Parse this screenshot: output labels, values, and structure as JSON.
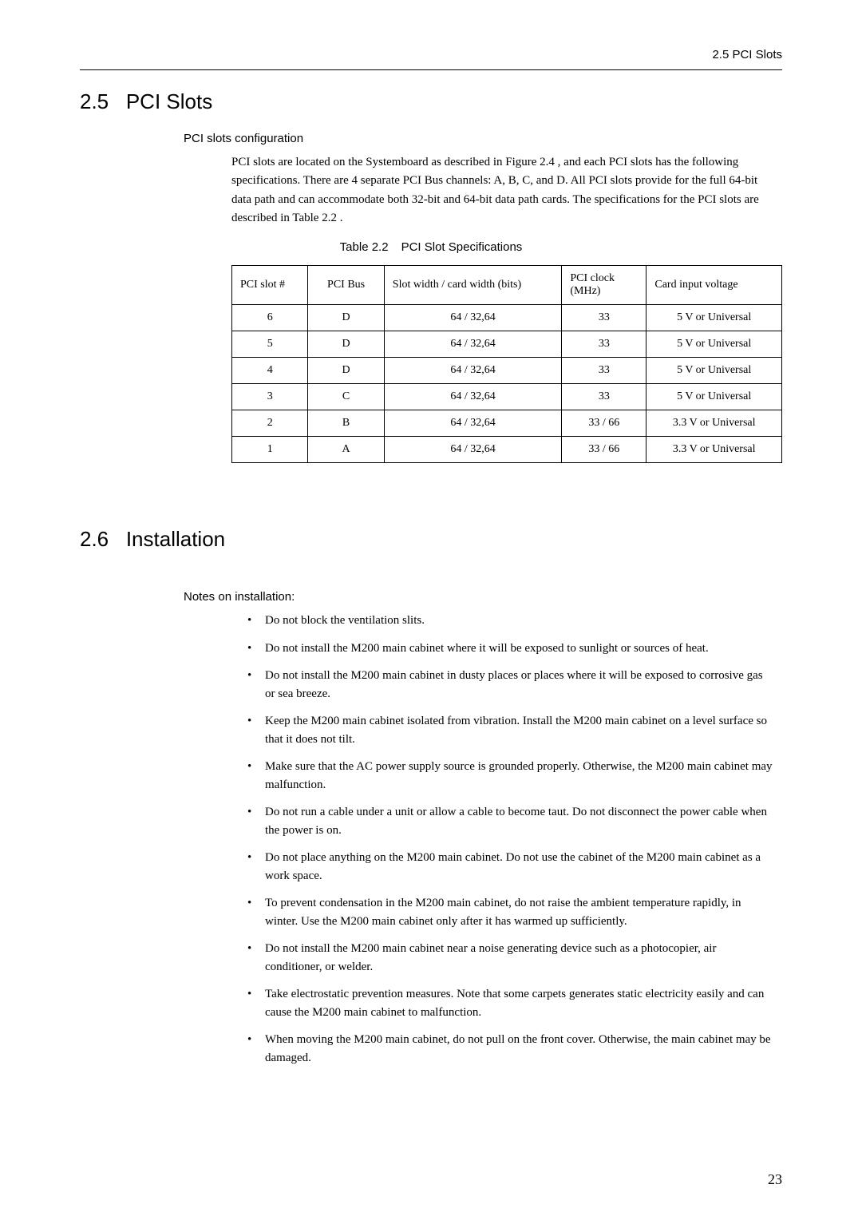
{
  "header_right": "2.5  PCI Slots",
  "section1": {
    "number": "2.5",
    "title": "PCI Slots",
    "subtitle": "PCI slots configuration",
    "para": "PCI slots are located on the Systemboard as described in Figure 2.4 , and each PCI slots has the following specifications. There are 4 separate PCI Bus channels: A, B, C, and D. All PCI slots provide for the full 64-bit data path and can accommodate both 32-bit and 64-bit data path cards. The specifications for the PCI slots are described in Table 2.2 .",
    "table_caption_num": "Table 2.2",
    "table_caption_text": "PCI Slot Specifications",
    "columns": [
      "PCI slot #",
      "PCI Bus",
      "Slot width / card width (bits)",
      "PCI clock (MHz)",
      "Card input voltage"
    ],
    "rows": [
      [
        "6",
        "D",
        "64 / 32,64",
        "33",
        "5 V or Universal"
      ],
      [
        "5",
        "D",
        "64 / 32,64",
        "33",
        "5 V or Universal"
      ],
      [
        "4",
        "D",
        "64 / 32,64",
        "33",
        "5 V or Universal"
      ],
      [
        "3",
        "C",
        "64 / 32,64",
        "33",
        "5 V or Universal"
      ],
      [
        "2",
        "B",
        "64 / 32,64",
        "33 / 66",
        "3.3 V or Universal"
      ],
      [
        "1",
        "A",
        "64 / 32,64",
        "33 / 66",
        "3.3 V or Universal"
      ]
    ]
  },
  "section2": {
    "number": "2.6",
    "title": "Installation",
    "subtitle": "Notes on installation:",
    "items": [
      "Do not block the ventilation slits.",
      "Do not install the M200 main cabinet where it will be exposed to sunlight or sources of heat.",
      "Do not install the M200 main cabinet in dusty places or places where it will be exposed to corrosive gas or sea breeze.",
      "Keep the M200 main cabinet isolated from vibration. Install the M200 main cabinet on a level surface so that it does not tilt.",
      "Make sure that the AC power supply source is grounded properly. Otherwise, the M200 main cabinet may malfunction.",
      "Do not run a cable under a unit or allow a cable to become taut. Do not disconnect the power cable when the power is on.",
      "Do not place anything on the M200 main cabinet. Do not use the cabinet of the M200 main cabinet as a work space.",
      "To prevent condensation in the M200 main cabinet, do not raise the ambient temperature rapidly, in winter. Use the M200 main cabinet only after it has warmed up sufficiently.",
      "Do not install the M200 main cabinet near a noise generating device such as a photocopier, air conditioner, or welder.",
      "Take electrostatic prevention measures. Note that some carpets generates static electricity easily and can cause the M200 main cabinet to malfunction.",
      "When moving the M200 main cabinet, do not pull on the front cover. Otherwise, the main cabinet may be damaged."
    ]
  },
  "page_number": "23"
}
